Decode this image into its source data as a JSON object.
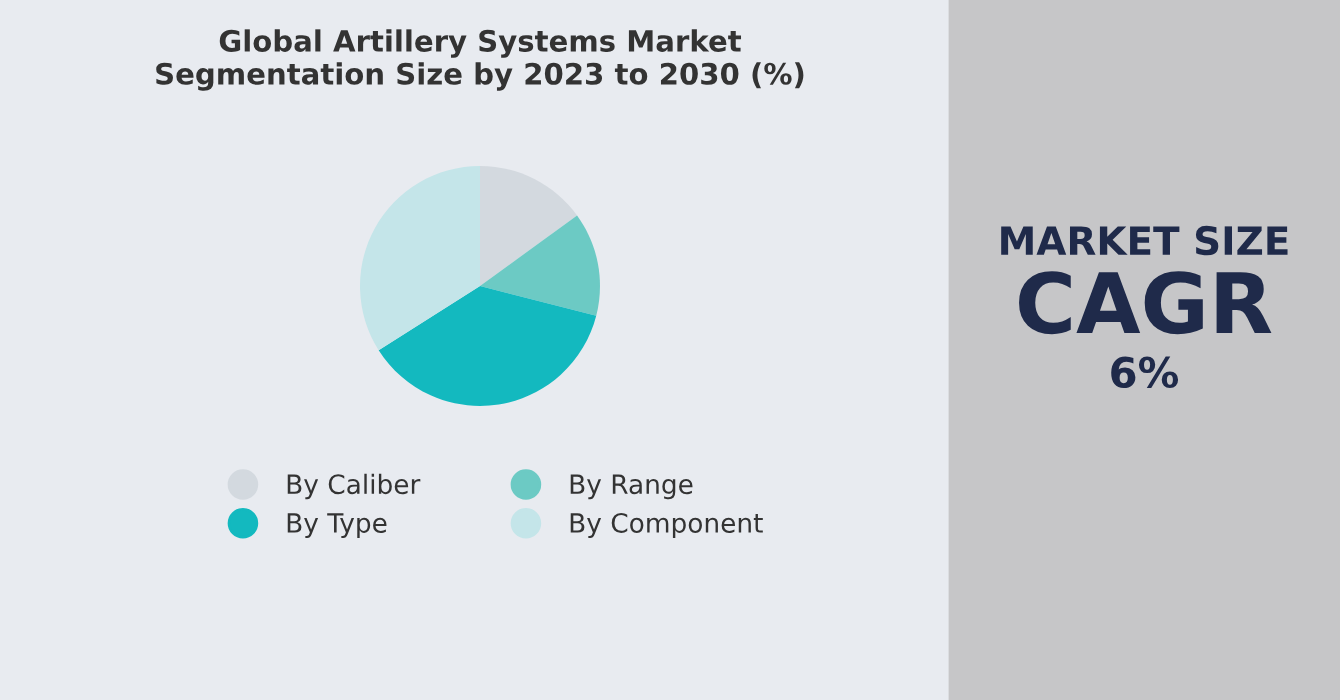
{
  "chart_data": [
    {
      "type": "pie",
      "title": "Global Artillery Systems Market\nSegmentation Size by 2023 to 2030 (%)",
      "categories": [
        "By Caliber",
        "By Range",
        "By Type",
        "By Component"
      ],
      "values": [
        15,
        14,
        37,
        34
      ],
      "colors": [
        "#d3d9df",
        "#6ccac4",
        "#13b9bf",
        "#c4e5e9"
      ],
      "legend": "bottom"
    },
    {
      "type": "other",
      "annotations": [
        "MARKET SIZE",
        "CAGR",
        "6%"
      ]
    }
  ]
}
